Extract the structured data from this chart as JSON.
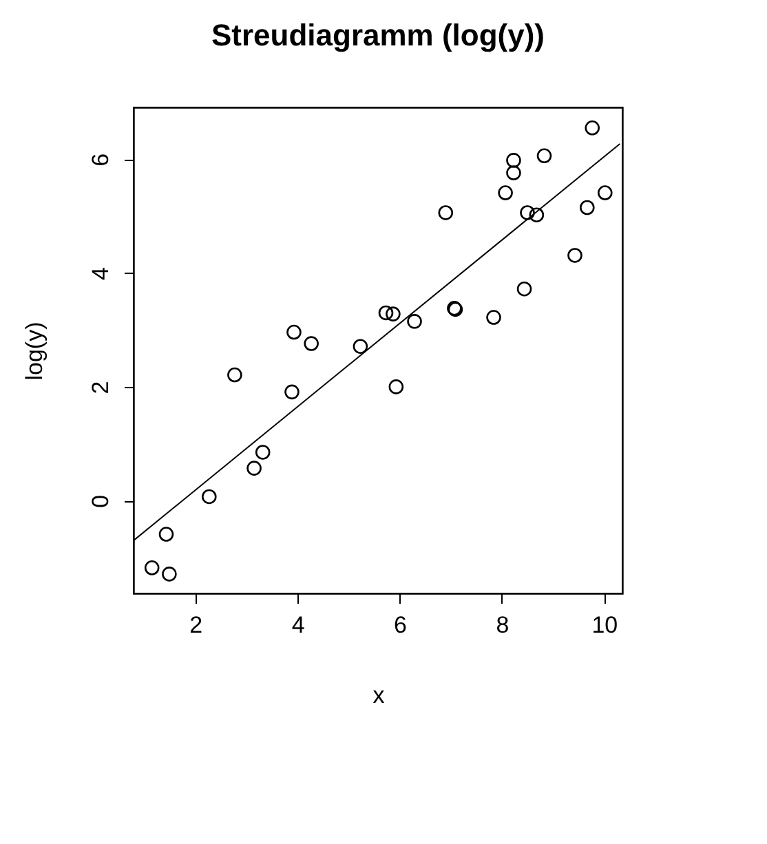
{
  "chart_data": {
    "type": "scatter",
    "title": "Streudiagramm (log(y))",
    "xlabel": "x",
    "ylabel": "log(y)",
    "xlim": [
      0.79,
      10.36
    ],
    "ylim": [
      -1.63,
      6.91
    ],
    "xticks": [
      2,
      4,
      6,
      8,
      10
    ],
    "yticks": [
      0,
      2,
      4,
      6
    ],
    "grid": false,
    "marker": "circle",
    "series": [
      {
        "color": "#000000",
        "x": [
          1.15,
          1.49,
          1.43,
          2.27,
          2.77,
          3.15,
          3.32,
          3.89,
          3.93,
          4.27,
          5.23,
          5.73,
          5.87,
          5.93,
          6.29,
          6.9,
          7.07,
          7.09,
          7.84,
          8.07,
          8.23,
          8.23,
          8.44,
          8.5,
          8.68,
          8.83,
          9.43,
          9.67,
          9.77,
          10.02
        ],
        "values": [
          -1.18,
          -1.29,
          -0.59,
          0.07,
          2.21,
          0.57,
          0.85,
          1.91,
          2.96,
          2.76,
          2.71,
          3.3,
          3.28,
          2.0,
          3.15,
          5.06,
          3.38,
          3.36,
          3.22,
          5.41,
          5.98,
          5.76,
          3.72,
          5.06,
          5.02,
          6.06,
          4.31,
          5.15,
          6.55,
          5.41
        ]
      },
      {
        "type": "line",
        "marker": "none",
        "color": "#000000",
        "x": [
          0.79,
          10.31
        ],
        "values": [
          -0.7,
          6.27
        ]
      }
    ]
  }
}
